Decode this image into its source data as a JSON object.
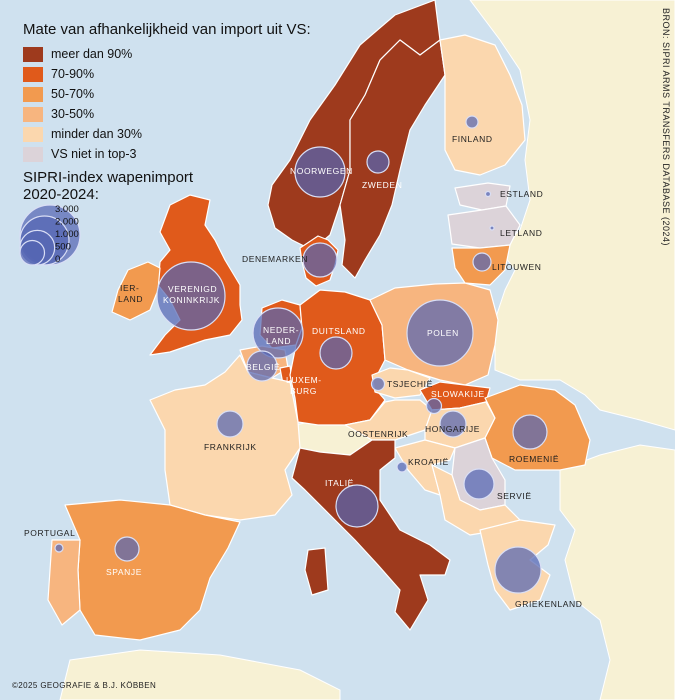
{
  "legend": {
    "title": "Mate van afhankelijkheid van import uit VS:",
    "categories": [
      {
        "label": "meer dan 90%",
        "color": "#9e3a1d"
      },
      {
        "label": "70-90%",
        "color": "#e05a1b"
      },
      {
        "label": "50-70%",
        "color": "#f29a4f"
      },
      {
        "label": "30-50%",
        "color": "#f7b57f"
      },
      {
        "label": "minder dan 30%",
        "color": "#fbd7ae"
      },
      {
        "label": "VS niet in top-3",
        "color": "#dcd3d9"
      }
    ]
  },
  "sipri_legend": {
    "title_line1": "SIPRI-index wapenimport",
    "title_line2": "2020-2024:",
    "sizes": [
      {
        "label": "3.000",
        "value": 3000
      },
      {
        "label": "2.000",
        "value": 2000
      },
      {
        "label": "1.000",
        "value": 1000
      },
      {
        "label": "500",
        "value": 500
      },
      {
        "label": "0",
        "value": 0
      }
    ]
  },
  "source": "BRON: SIPRI ARMS TRANSFERS DATABASE (2024)",
  "copyright": "©2025 GEOGRAFIE & B.J. KÖBBEN",
  "countries": [
    {
      "name": "NOORWEGEN",
      "category": "meer dan 90%"
    },
    {
      "name": "ZWEDEN",
      "category": "meer dan 90%"
    },
    {
      "name": "FINLAND",
      "category": "minder dan 30%"
    },
    {
      "name": "ESTLAND",
      "category": "VS niet in top-3"
    },
    {
      "name": "LETLAND",
      "category": "VS niet in top-3"
    },
    {
      "name": "LITOUWEN",
      "category": "50-70%"
    },
    {
      "name": "DENEMARKEN",
      "category": "70-90%"
    },
    {
      "name": "VERENIGD KONINKRIJK",
      "category": "70-90%"
    },
    {
      "name": "IERLAND",
      "category": "50-70%"
    },
    {
      "name": "NEDERLAND",
      "category": "70-90%"
    },
    {
      "name": "BELGIË",
      "category": "30-50%"
    },
    {
      "name": "LUXEMBURG",
      "category": "70-90%"
    },
    {
      "name": "DUITSLAND",
      "category": "70-90%"
    },
    {
      "name": "POLEN",
      "category": "30-50%"
    },
    {
      "name": "TSJECHIË",
      "category": "minder dan 30%"
    },
    {
      "name": "SLOWAKIJE",
      "category": "70-90%"
    },
    {
      "name": "OOSTENRIJK",
      "category": "minder dan 30%"
    },
    {
      "name": "HONGARIJE",
      "category": "minder dan 30%"
    },
    {
      "name": "ROEMENIË",
      "category": "50-70%"
    },
    {
      "name": "FRANKRIJK",
      "category": "minder dan 30%"
    },
    {
      "name": "ITALIË",
      "category": "meer dan 90%"
    },
    {
      "name": "KROATIË",
      "category": "minder dan 30%"
    },
    {
      "name": "SERVIË",
      "category": "VS niet in top-3"
    },
    {
      "name": "SPANJE",
      "category": "50-70%"
    },
    {
      "name": "PORTUGAL",
      "category": "30-50%"
    },
    {
      "name": "GRIEKENLAND",
      "category": "minder dan 30%"
    }
  ],
  "labels": {
    "noorwegen": "NOORWEGEN",
    "zweden": "ZWEDEN",
    "finland": "FINLAND",
    "estland": "ESTLAND",
    "letland": "LETLAND",
    "litouwen": "LITOUWEN",
    "denemarken": "DENEMARKEN",
    "vk_1": "VERENIGD",
    "vk_2": "KONINKRIJK",
    "ierland_1": "IER-",
    "ierland_2": "LAND",
    "nederland_1": "NEDER-",
    "nederland_2": "LAND",
    "belgie": "BELGIË",
    "luxemburg_1": "LUXEM-",
    "luxemburg_2": "BURG",
    "duitsland": "DUITSLAND",
    "polen": "POLEN",
    "tsjechie": "TSJECHIË",
    "slowakije": "SLOWAKIJE",
    "oostenrijk": "OOSTENRIJK",
    "hongarije": "HONGARIJE",
    "roemenie": "ROEMENIË",
    "frankrijk": "FRANKRIJK",
    "italie": "ITALIË",
    "kroatie": "KROATIË",
    "servie": "SERVIË",
    "spanje": "SPANJE",
    "portugal": "PORTUGAL",
    "griekenland": "GRIEKENLAND"
  }
}
